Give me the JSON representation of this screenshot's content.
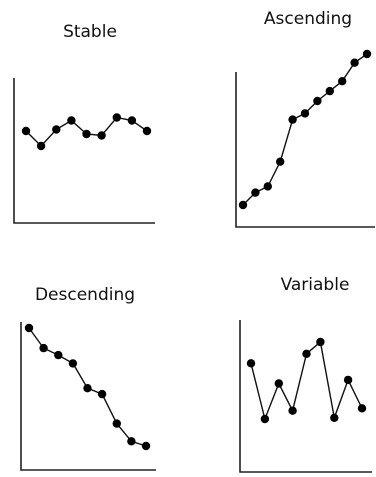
{
  "chart_data": [
    {
      "type": "line",
      "title": "Stable",
      "xlabel": "",
      "ylabel": "",
      "grid": false,
      "x": [
        1,
        2,
        3,
        4,
        5,
        6,
        7,
        8,
        9
      ],
      "series": [
        {
          "values": [
            6.0,
            5.0,
            6.1,
            6.7,
            5.8,
            5.7,
            6.9,
            6.7,
            6.0
          ]
        }
      ]
    },
    {
      "type": "line",
      "title": "Ascending",
      "xlabel": "",
      "ylabel": "",
      "grid": false,
      "x": [
        1,
        2,
        3,
        4,
        5,
        6,
        7,
        8,
        9,
        10,
        11
      ],
      "series": [
        {
          "values": [
            1.0,
            2.0,
            2.5,
            4.5,
            7.9,
            8.4,
            9.4,
            10.2,
            11.0,
            12.5,
            13.2
          ]
        }
      ]
    },
    {
      "type": "line",
      "title": "Descending",
      "xlabel": "",
      "ylabel": "",
      "grid": false,
      "x": [
        1,
        2,
        3,
        4,
        5,
        6,
        7,
        8,
        9
      ],
      "series": [
        {
          "values": [
            12.0,
            10.3,
            9.7,
            9.0,
            6.9,
            6.4,
            3.9,
            2.4,
            2.0
          ]
        }
      ]
    },
    {
      "type": "line",
      "title": "Variable",
      "xlabel": "",
      "ylabel": "",
      "grid": false,
      "x": [
        1,
        2,
        3,
        4,
        5,
        6,
        7,
        8,
        9
      ],
      "series": [
        {
          "values": [
            8.2,
            3.5,
            6.5,
            4.2,
            9.0,
            10.0,
            3.6,
            6.8,
            4.4
          ]
        }
      ]
    }
  ]
}
